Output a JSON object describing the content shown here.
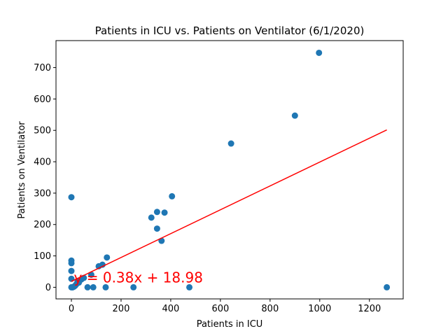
{
  "chart_data": {
    "type": "scatter",
    "title": "Patients in ICU vs. Patients on Ventilator (6/1/2020)",
    "xlabel": "Patients in ICU",
    "ylabel": "Patients on Ventilator",
    "xlim": [
      -62,
      1336
    ],
    "ylim": [
      -37,
      786
    ],
    "xticks": [
      0,
      200,
      400,
      600,
      800,
      1000,
      1200
    ],
    "yticks": [
      0,
      100,
      200,
      300,
      400,
      500,
      600,
      700
    ],
    "grid": false,
    "point_color": "#1f77b4",
    "line_color": "#ff0000",
    "points": [
      {
        "x": 0,
        "y": 287
      },
      {
        "x": 0,
        "y": 85
      },
      {
        "x": 0,
        "y": 77
      },
      {
        "x": 0,
        "y": 52
      },
      {
        "x": 0,
        "y": 27
      },
      {
        "x": 0,
        "y": 0
      },
      {
        "x": 3,
        "y": 0
      },
      {
        "x": 5,
        "y": 0
      },
      {
        "x": 10,
        "y": 2
      },
      {
        "x": 15,
        "y": 5
      },
      {
        "x": 20,
        "y": 10
      },
      {
        "x": 25,
        "y": 20
      },
      {
        "x": 30,
        "y": 15
      },
      {
        "x": 40,
        "y": 25
      },
      {
        "x": 50,
        "y": 30
      },
      {
        "x": 65,
        "y": 0
      },
      {
        "x": 80,
        "y": 40
      },
      {
        "x": 88,
        "y": 0
      },
      {
        "x": 110,
        "y": 67
      },
      {
        "x": 125,
        "y": 72
      },
      {
        "x": 138,
        "y": 0
      },
      {
        "x": 143,
        "y": 95
      },
      {
        "x": 250,
        "y": 0
      },
      {
        "x": 322,
        "y": 222
      },
      {
        "x": 345,
        "y": 240
      },
      {
        "x": 345,
        "y": 187
      },
      {
        "x": 363,
        "y": 148
      },
      {
        "x": 375,
        "y": 238
      },
      {
        "x": 405,
        "y": 290
      },
      {
        "x": 475,
        "y": 0
      },
      {
        "x": 643,
        "y": 458
      },
      {
        "x": 900,
        "y": 547
      },
      {
        "x": 997,
        "y": 747
      },
      {
        "x": 1270,
        "y": 0
      }
    ],
    "regression": {
      "slope": 0.38,
      "intercept": 18.98,
      "x_range": [
        0,
        1270
      ]
    },
    "annotation": {
      "text": "y = 0.38x + 18.98",
      "x": 10,
      "y": 15,
      "color": "#ff0000"
    }
  }
}
